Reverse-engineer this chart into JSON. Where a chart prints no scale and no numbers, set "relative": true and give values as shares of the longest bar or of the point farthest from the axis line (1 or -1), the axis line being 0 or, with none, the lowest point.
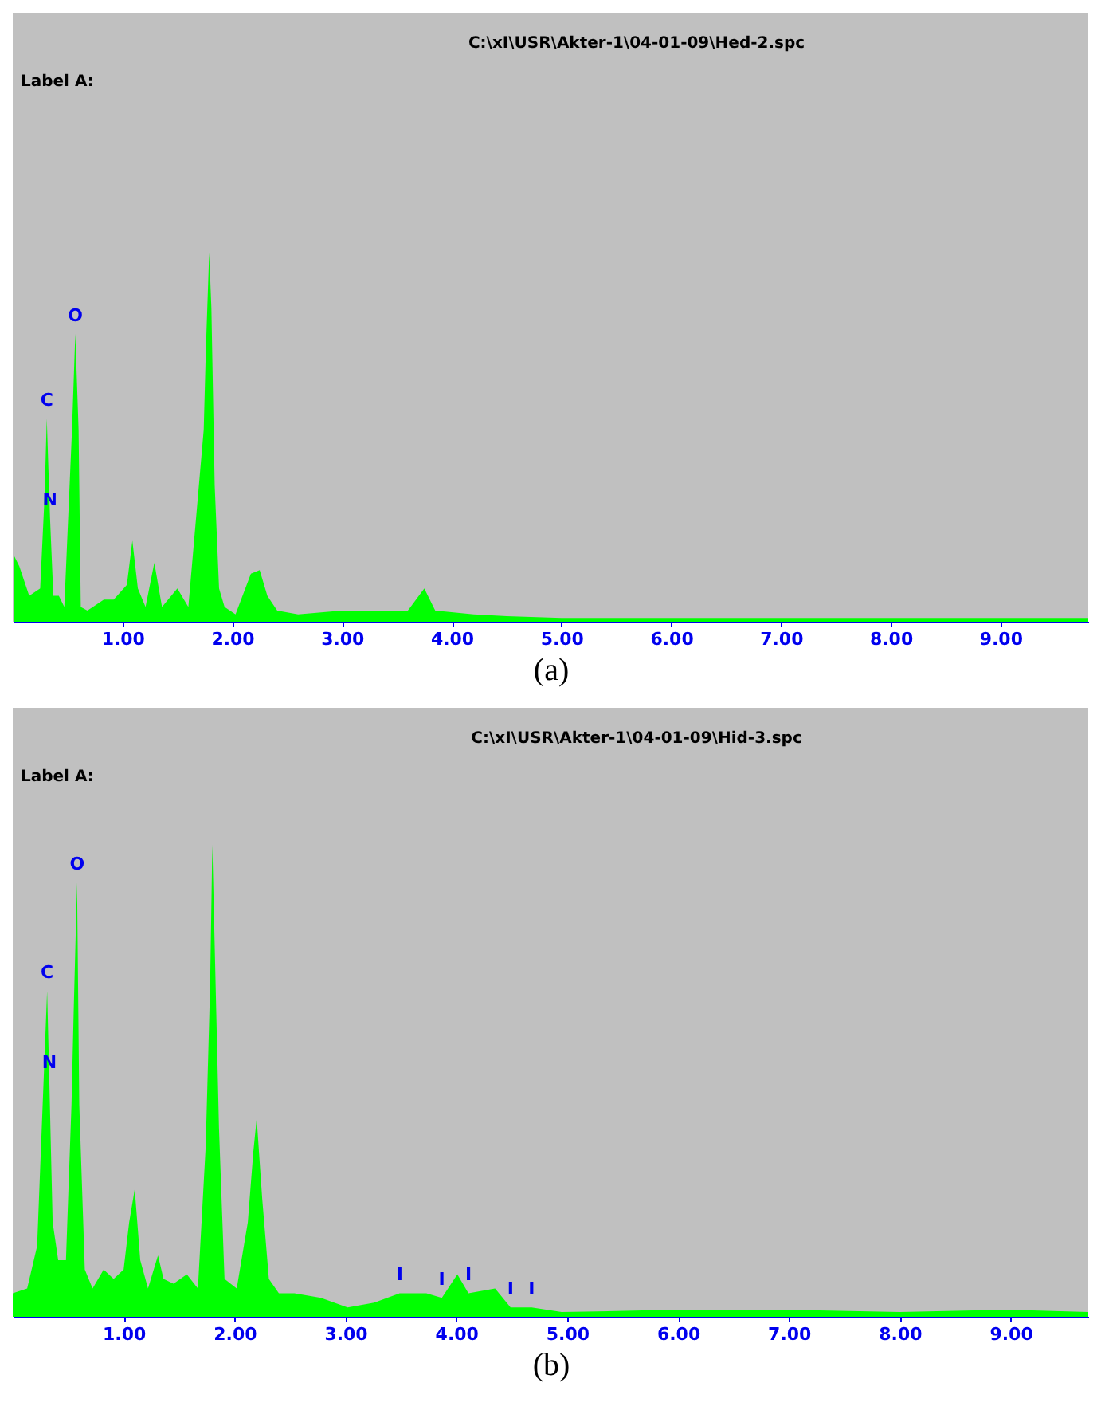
{
  "chart_data": [
    {
      "type": "area",
      "title": "C:\\xI\\USR\\Akter-1\\04-01-09\\Hed-2.spc",
      "xlabel": "(a)",
      "relative": true,
      "grid": false,
      "annotations": [
        "Label A:",
        {
          "text": "C",
          "x": 0.31,
          "y": 0.55
        },
        {
          "text": "O",
          "x": 0.57,
          "y": 0.78
        },
        {
          "text": "N",
          "x": 0.34,
          "y": 0.28
        }
      ],
      "xlim": [
        0,
        9.8
      ],
      "xticks": [
        {
          "value": 1,
          "label": "1.00"
        },
        {
          "value": 2,
          "label": "2.00"
        },
        {
          "value": 3,
          "label": "3.00"
        },
        {
          "value": 4,
          "label": "4.00"
        },
        {
          "value": 5,
          "label": "5.00"
        },
        {
          "value": 6,
          "label": "6.00"
        },
        {
          "value": 7,
          "label": "7.00"
        },
        {
          "value": 8,
          "label": "8.00"
        },
        {
          "value": 9,
          "label": "9.00"
        }
      ],
      "series": [
        {
          "color": "#00ff00",
          "x": [
            0.01,
            0.06,
            0.15,
            0.25,
            0.29,
            0.31,
            0.34,
            0.37,
            0.42,
            0.47,
            0.54,
            0.57,
            0.6,
            0.62,
            0.68,
            0.83,
            0.92,
            1.04,
            1.09,
            1.14,
            1.21,
            1.29,
            1.36,
            1.5,
            1.6,
            1.74,
            1.76,
            1.79,
            1.81,
            1.84,
            1.88,
            1.93,
            2.03,
            2.17,
            2.25,
            2.32,
            2.41,
            2.6,
            3.0,
            3.4,
            3.6,
            3.75,
            3.85,
            4.2,
            4.5,
            5.0,
            6.0,
            7.0,
            8.0,
            9.0,
            9.8
          ],
          "values": [
            0.18,
            0.15,
            0.07,
            0.09,
            0.34,
            0.55,
            0.28,
            0.07,
            0.07,
            0.04,
            0.52,
            0.78,
            0.52,
            0.04,
            0.03,
            0.06,
            0.06,
            0.1,
            0.22,
            0.09,
            0.04,
            0.16,
            0.04,
            0.09,
            0.04,
            0.52,
            0.74,
            1.0,
            0.85,
            0.37,
            0.09,
            0.04,
            0.02,
            0.13,
            0.14,
            0.07,
            0.03,
            0.02,
            0.03,
            0.03,
            0.03,
            0.09,
            0.03,
            0.02,
            0.015,
            0.01,
            0.01,
            0.01,
            0.01,
            0.01,
            0.01
          ]
        }
      ]
    },
    {
      "type": "area",
      "title": "C:\\xI\\USR\\Akter-1\\04-01-09\\Hid-3.spc",
      "xlabel": "(b)",
      "relative": true,
      "grid": false,
      "annotations": [
        "Label A:",
        {
          "text": "C",
          "x": 0.31,
          "y": 0.69
        },
        {
          "text": "N",
          "x": 0.33,
          "y": 0.5
        },
        {
          "text": "O",
          "x": 0.58,
          "y": 0.92
        },
        {
          "text": "I",
          "x": 3.49,
          "y": 0.05
        },
        {
          "text": "I",
          "x": 3.87,
          "y": 0.04
        },
        {
          "text": "I",
          "x": 4.11,
          "y": 0.05
        },
        {
          "text": "I",
          "x": 4.49,
          "y": 0.02
        },
        {
          "text": "I",
          "x": 4.68,
          "y": 0.02
        }
      ],
      "xlim": [
        0,
        9.7
      ],
      "xticks": [
        {
          "value": 1,
          "label": "1.00"
        },
        {
          "value": 2,
          "label": "2.00"
        },
        {
          "value": 3,
          "label": "3.00"
        },
        {
          "value": 4,
          "label": "4.00"
        },
        {
          "value": 5,
          "label": "5.00"
        },
        {
          "value": 6,
          "label": "6.00"
        },
        {
          "value": 7,
          "label": "7.00"
        },
        {
          "value": 8,
          "label": "8.00"
        },
        {
          "value": 9,
          "label": "9.00"
        }
      ],
      "series": [
        {
          "color": "#00ff00",
          "x": [
            0.0,
            0.13,
            0.22,
            0.27,
            0.31,
            0.33,
            0.36,
            0.41,
            0.48,
            0.53,
            0.55,
            0.58,
            0.6,
            0.65,
            0.72,
            0.82,
            0.91,
            1.0,
            1.05,
            1.1,
            1.15,
            1.22,
            1.31,
            1.36,
            1.45,
            1.57,
            1.67,
            1.74,
            1.78,
            1.8,
            1.82,
            1.86,
            1.91,
            2.02,
            2.12,
            2.17,
            2.2,
            2.25,
            2.31,
            2.4,
            2.54,
            2.78,
            3.02,
            3.26,
            3.49,
            3.73,
            3.87,
            4.01,
            4.11,
            4.35,
            4.49,
            4.68,
            4.95,
            6.0,
            7.0,
            8.0,
            9.0,
            9.7
          ],
          "values": [
            0.05,
            0.06,
            0.15,
            0.45,
            0.69,
            0.5,
            0.2,
            0.12,
            0.12,
            0.45,
            0.65,
            0.92,
            0.45,
            0.1,
            0.06,
            0.1,
            0.08,
            0.1,
            0.2,
            0.27,
            0.12,
            0.06,
            0.13,
            0.08,
            0.07,
            0.09,
            0.06,
            0.36,
            0.7,
            1.0,
            0.8,
            0.4,
            0.08,
            0.06,
            0.2,
            0.35,
            0.42,
            0.25,
            0.08,
            0.05,
            0.05,
            0.04,
            0.02,
            0.03,
            0.05,
            0.05,
            0.04,
            0.09,
            0.05,
            0.06,
            0.02,
            0.02,
            0.01,
            0.015,
            0.015,
            0.01,
            0.015,
            0.01
          ]
        }
      ]
    }
  ]
}
